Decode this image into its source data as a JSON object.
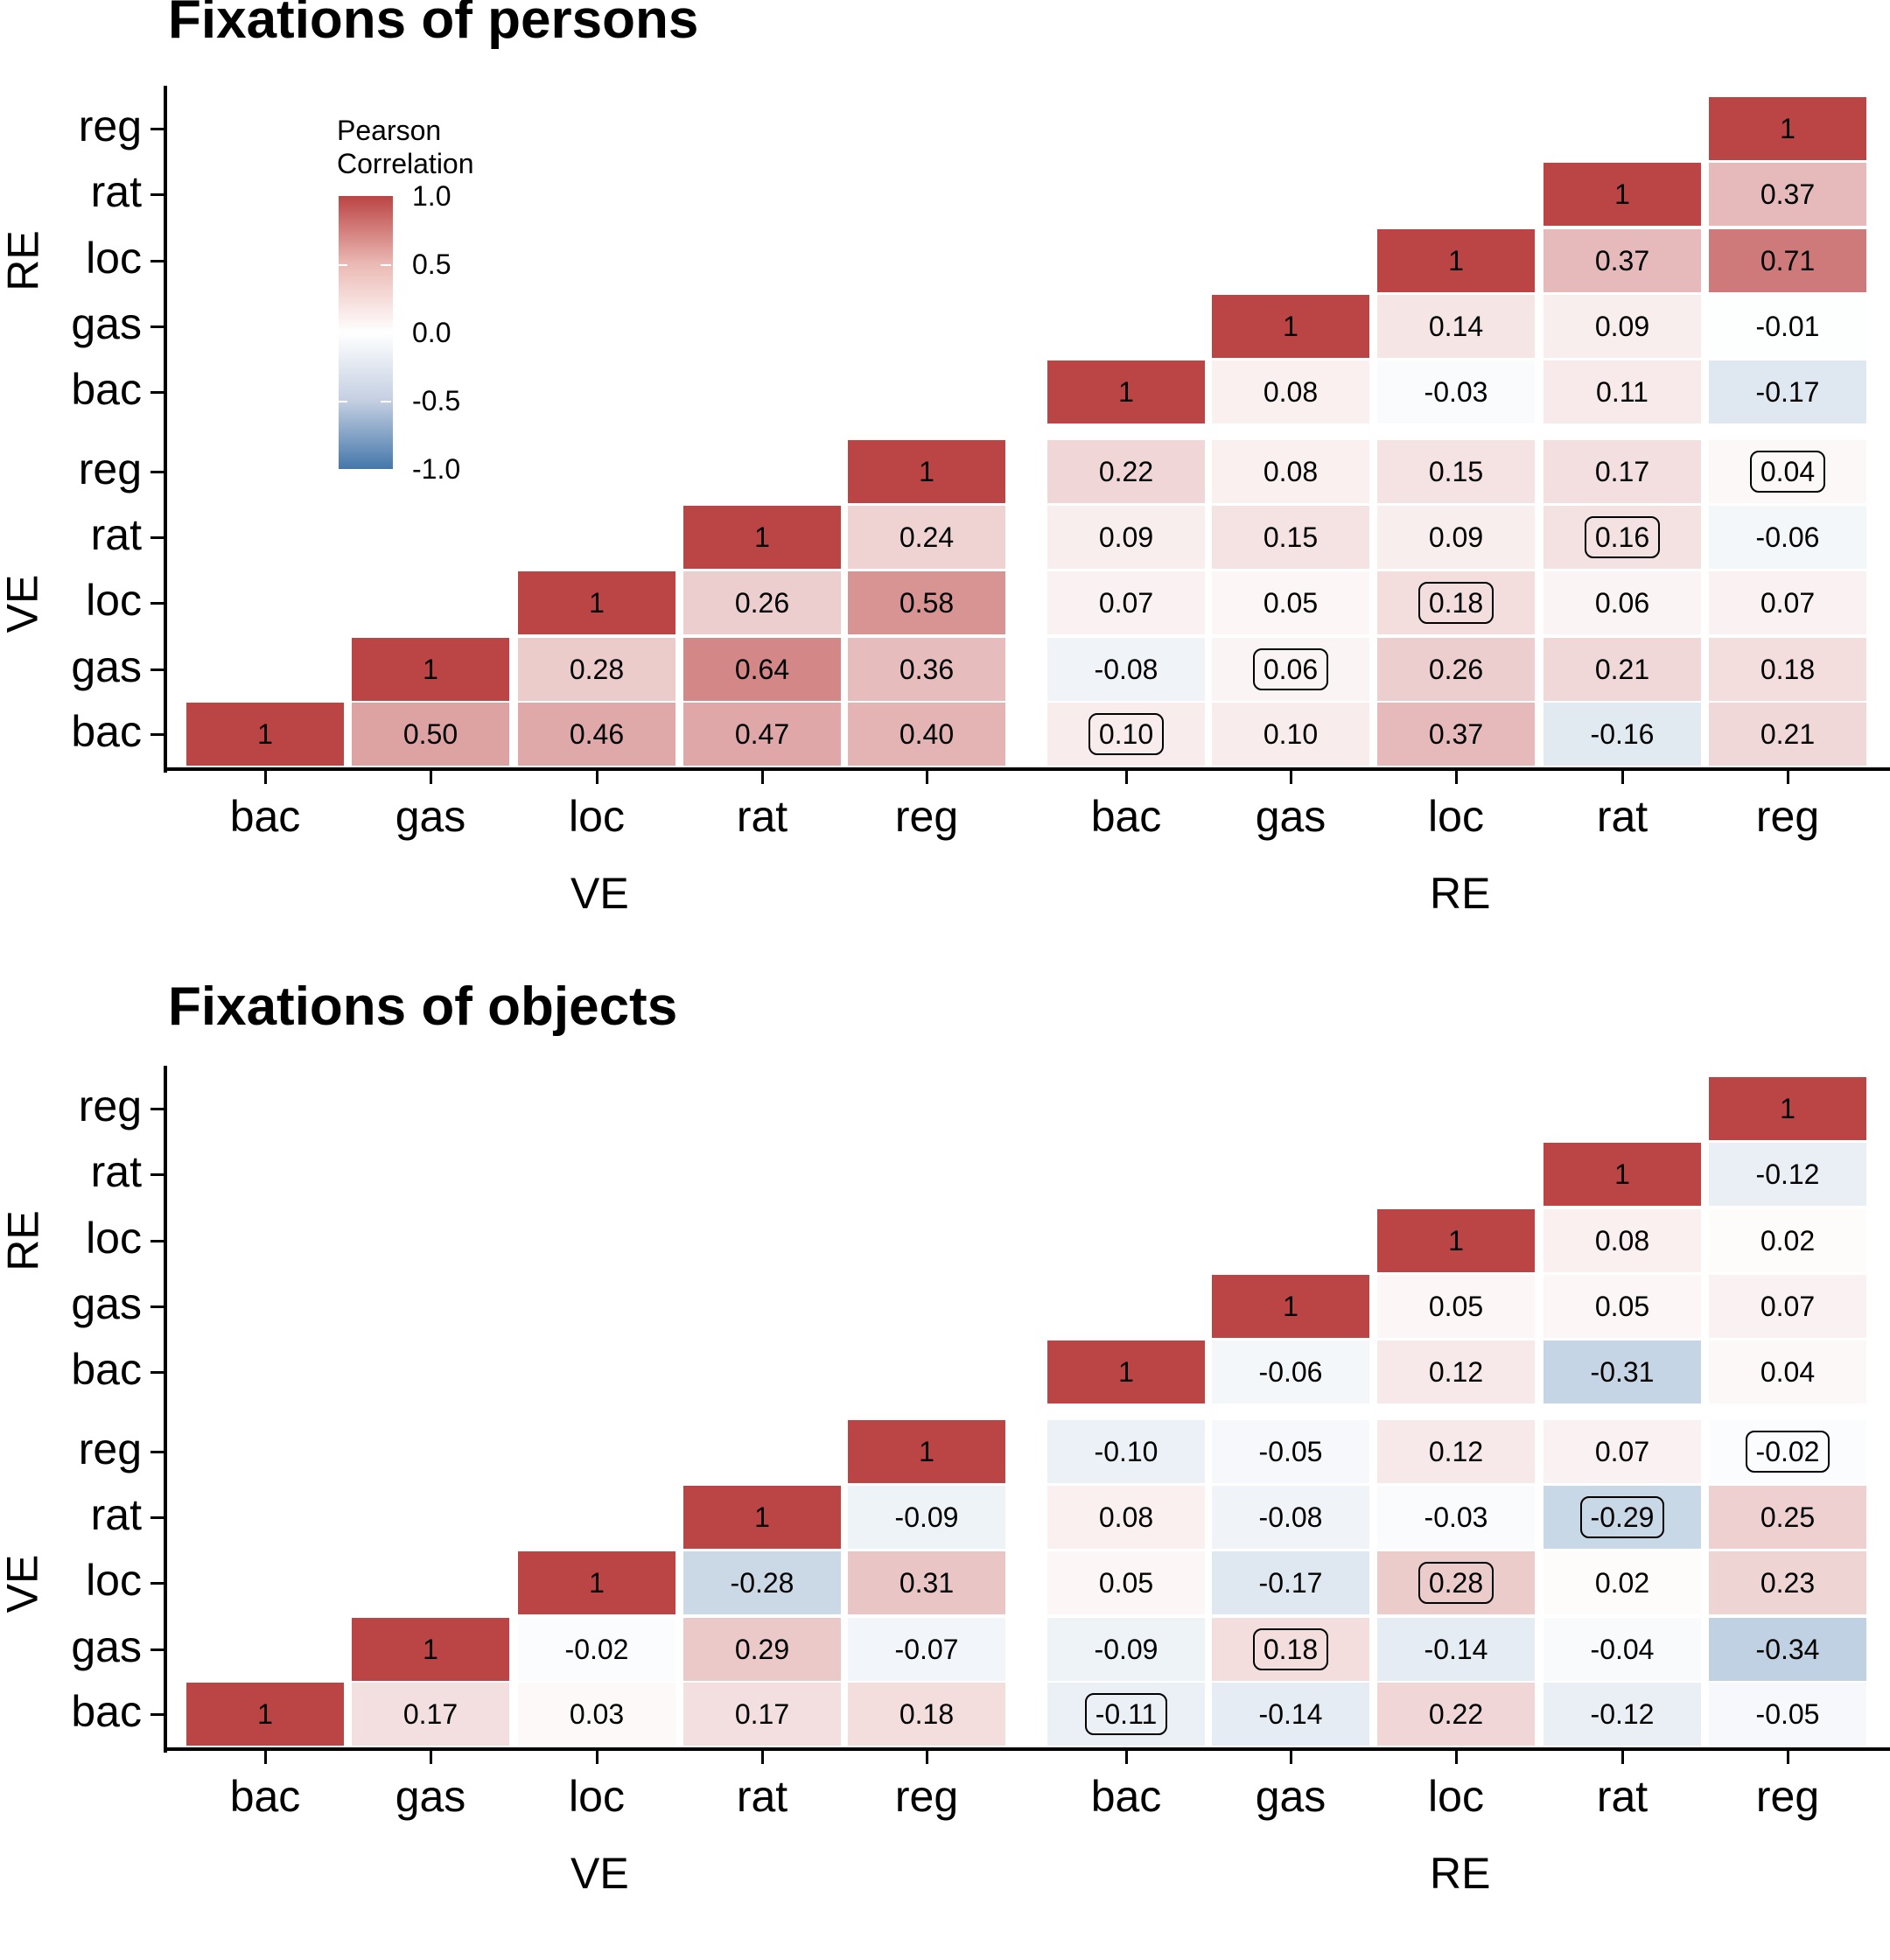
{
  "chart_data": [
    {
      "type": "heatmap",
      "title": "Fixations of persons",
      "xlabel_groups": [
        "VE",
        "RE"
      ],
      "ylabel_groups": [
        "RE",
        "VE"
      ],
      "x": [
        "VE-bac",
        "VE-gas",
        "VE-loc",
        "VE-rat",
        "VE-reg",
        "RE-bac",
        "RE-gas",
        "RE-loc",
        "RE-rat",
        "RE-reg"
      ],
      "y": [
        "RE-reg",
        "RE-rat",
        "RE-loc",
        "RE-gas",
        "RE-bac",
        "VE-reg",
        "VE-rat",
        "VE-loc",
        "VE-gas",
        "VE-bac"
      ],
      "tick_labels": [
        "bac",
        "gas",
        "loc",
        "rat",
        "reg"
      ],
      "y_tick_labels": [
        "reg",
        "rat",
        "loc",
        "gas",
        "bac",
        "reg",
        "rat",
        "loc",
        "gas",
        "bac"
      ],
      "legend": {
        "title": "Pearson\nCorrelation",
        "ticks": [
          "1.0",
          "0.5",
          "0.0",
          "-0.5",
          "-1.0"
        ],
        "range": [
          -1,
          1
        ],
        "colors": {
          "high": "#BB4444",
          "mid": "#FFFFFF",
          "low": "#4477AA"
        }
      },
      "values": [
        [
          null,
          null,
          null,
          null,
          null,
          null,
          null,
          null,
          null,
          "1"
        ],
        [
          null,
          null,
          null,
          null,
          null,
          null,
          null,
          null,
          "1",
          "0.37"
        ],
        [
          null,
          null,
          null,
          null,
          null,
          null,
          null,
          "1",
          "0.37",
          "0.71"
        ],
        [
          null,
          null,
          null,
          null,
          null,
          null,
          "1",
          "0.14",
          "0.09",
          "-0.01"
        ],
        [
          null,
          null,
          null,
          null,
          null,
          "1",
          "0.08",
          "-0.03",
          "0.11",
          "-0.17"
        ],
        [
          null,
          null,
          null,
          null,
          "1",
          "0.22",
          "0.08",
          "0.15",
          "0.17",
          "0.04"
        ],
        [
          null,
          null,
          null,
          "1",
          "0.24",
          "0.09",
          "0.15",
          "0.09",
          "0.16",
          "-0.06"
        ],
        [
          null,
          null,
          "1",
          "0.26",
          "0.58",
          "0.07",
          "0.05",
          "0.18",
          "0.06",
          "0.07"
        ],
        [
          null,
          "1",
          "0.28",
          "0.64",
          "0.36",
          "-0.08",
          "0.06",
          "0.26",
          "0.21",
          "0.18"
        ],
        [
          "1",
          "0.50",
          "0.46",
          "0.47",
          "0.40",
          "0.10",
          "0.10",
          "0.37",
          "-0.16",
          "0.21"
        ]
      ],
      "boxed": [
        [
          5,
          9
        ],
        [
          6,
          8
        ],
        [
          7,
          7
        ],
        [
          8,
          6
        ],
        [
          9,
          5
        ]
      ]
    },
    {
      "type": "heatmap",
      "title": "Fixations of objects",
      "xlabel_groups": [
        "VE",
        "RE"
      ],
      "ylabel_groups": [
        "RE",
        "VE"
      ],
      "x": [
        "VE-bac",
        "VE-gas",
        "VE-loc",
        "VE-rat",
        "VE-reg",
        "RE-bac",
        "RE-gas",
        "RE-loc",
        "RE-rat",
        "RE-reg"
      ],
      "y": [
        "RE-reg",
        "RE-rat",
        "RE-loc",
        "RE-gas",
        "RE-bac",
        "VE-reg",
        "VE-rat",
        "VE-loc",
        "VE-gas",
        "VE-bac"
      ],
      "tick_labels": [
        "bac",
        "gas",
        "loc",
        "rat",
        "reg"
      ],
      "y_tick_labels": [
        "reg",
        "rat",
        "loc",
        "gas",
        "bac",
        "reg",
        "rat",
        "loc",
        "gas",
        "bac"
      ],
      "values": [
        [
          null,
          null,
          null,
          null,
          null,
          null,
          null,
          null,
          null,
          "1"
        ],
        [
          null,
          null,
          null,
          null,
          null,
          null,
          null,
          null,
          "1",
          "-0.12"
        ],
        [
          null,
          null,
          null,
          null,
          null,
          null,
          null,
          "1",
          "0.08",
          "0.02"
        ],
        [
          null,
          null,
          null,
          null,
          null,
          null,
          "1",
          "0.05",
          "0.05",
          "0.07"
        ],
        [
          null,
          null,
          null,
          null,
          null,
          "1",
          "-0.06",
          "0.12",
          "-0.31",
          "0.04"
        ],
        [
          null,
          null,
          null,
          null,
          "1",
          "-0.10",
          "-0.05",
          "0.12",
          "0.07",
          "-0.02"
        ],
        [
          null,
          null,
          null,
          "1",
          "-0.09",
          "0.08",
          "-0.08",
          "-0.03",
          "-0.29",
          "0.25"
        ],
        [
          null,
          null,
          "1",
          "-0.28",
          "0.31",
          "0.05",
          "-0.17",
          "0.28",
          "0.02",
          "0.23"
        ],
        [
          null,
          "1",
          "-0.02",
          "0.29",
          "-0.07",
          "-0.09",
          "0.18",
          "-0.14",
          "-0.04",
          "-0.34"
        ],
        [
          "1",
          "0.17",
          "0.03",
          "0.17",
          "0.18",
          "-0.11",
          "-0.14",
          "0.22",
          "-0.12",
          "-0.05"
        ]
      ],
      "boxed": [
        [
          5,
          9
        ],
        [
          6,
          8
        ],
        [
          7,
          7
        ],
        [
          8,
          6
        ],
        [
          9,
          5
        ]
      ]
    }
  ]
}
